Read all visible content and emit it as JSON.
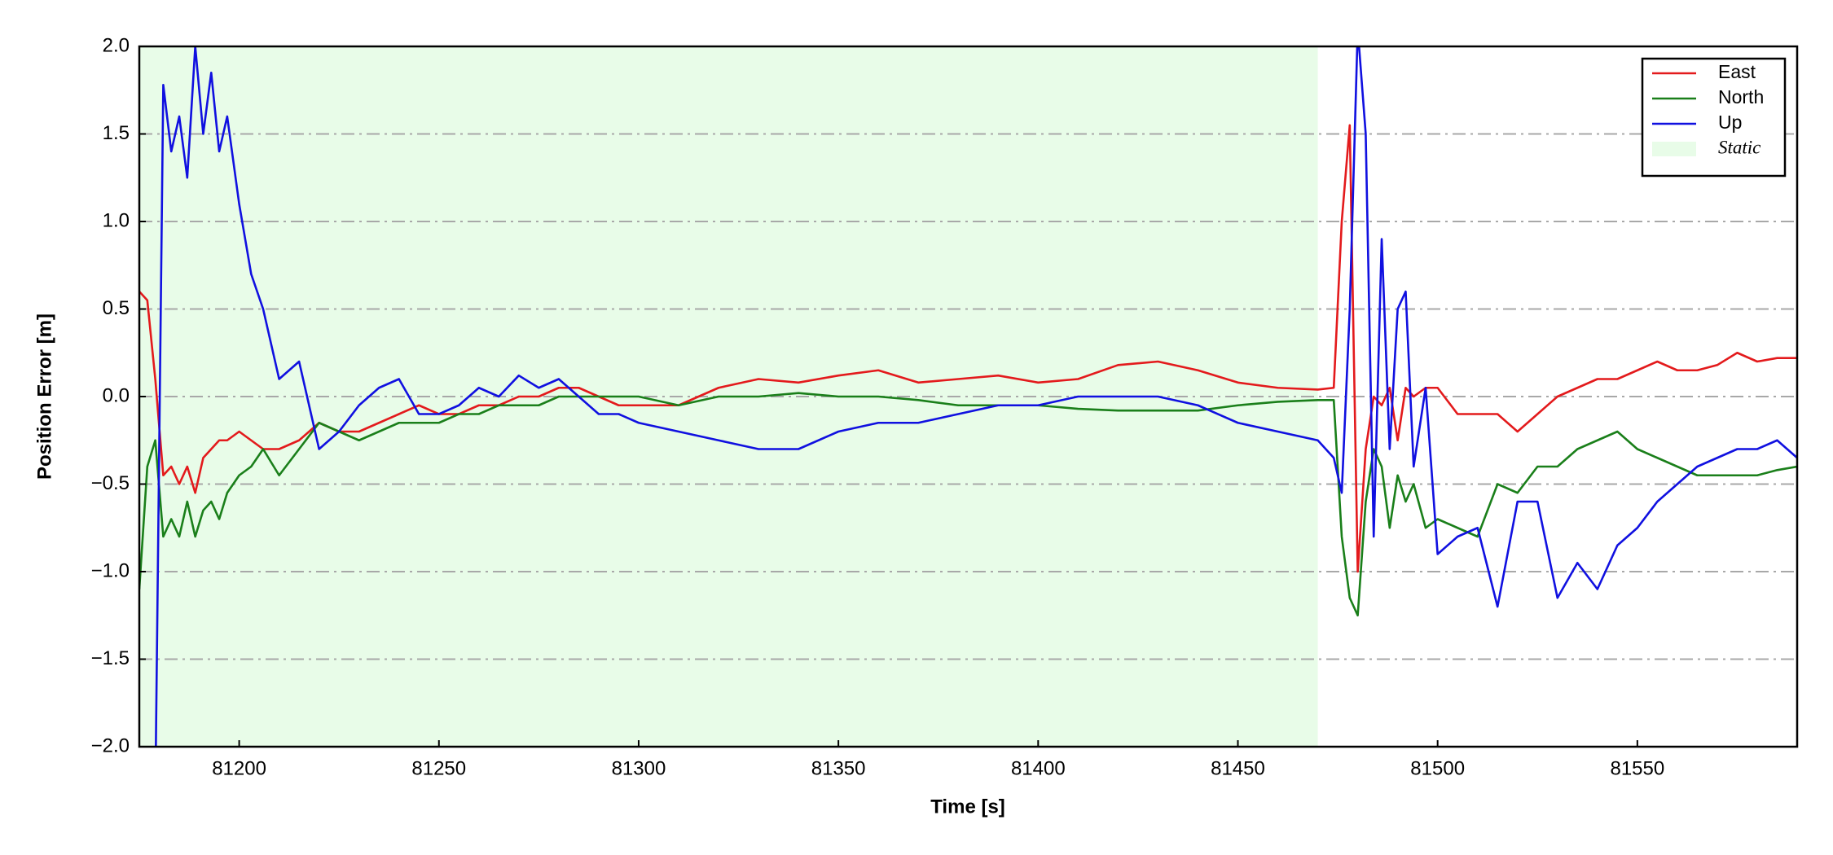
{
  "chart_data": {
    "type": "line",
    "xlabel": "Time [s]",
    "ylabel": "Position Error [m]",
    "xlim": [
      81175,
      81590
    ],
    "ylim": [
      -2.0,
      2.0
    ],
    "xticks": [
      81200,
      81250,
      81300,
      81350,
      81400,
      81450,
      81500,
      81550
    ],
    "yticks": [
      {
        "value": -2.0,
        "label": "−2.0"
      },
      {
        "value": -1.5,
        "label": "−1.5"
      },
      {
        "value": -1.0,
        "label": "−1.0"
      },
      {
        "value": -0.5,
        "label": "−0.5"
      },
      {
        "value": 0.0,
        "label": "0.0"
      },
      {
        "value": 0.5,
        "label": "0.5"
      },
      {
        "value": 1.0,
        "label": "1.0"
      },
      {
        "value": 1.5,
        "label": "1.5"
      },
      {
        "value": 2.0,
        "label": "2.0"
      }
    ],
    "grid": true,
    "legend": "upper right",
    "static_region": {
      "label": "Static",
      "x": [
        81175,
        81470
      ],
      "color": "#e8fce8"
    },
    "x": [
      81175,
      81177,
      81179,
      81181,
      81183,
      81185,
      81187,
      81189,
      81191,
      81193,
      81195,
      81197,
      81200,
      81203,
      81206,
      81210,
      81215,
      81220,
      81225,
      81230,
      81235,
      81240,
      81245,
      81250,
      81255,
      81260,
      81265,
      81270,
      81275,
      81280,
      81285,
      81290,
      81295,
      81300,
      81310,
      81320,
      81330,
      81340,
      81350,
      81360,
      81370,
      81380,
      81390,
      81400,
      81410,
      81420,
      81430,
      81440,
      81450,
      81460,
      81470,
      81474,
      81476,
      81478,
      81480,
      81482,
      81484,
      81486,
      81488,
      81490,
      81492,
      81494,
      81497,
      81500,
      81505,
      81510,
      81515,
      81520,
      81525,
      81530,
      81535,
      81540,
      81545,
      81550,
      81555,
      81560,
      81565,
      81570,
      81575,
      81580,
      81585,
      81590
    ],
    "series": [
      {
        "name": "East",
        "color": "#e31a1c",
        "values": [
          0.6,
          0.55,
          0.1,
          -0.45,
          -0.4,
          -0.5,
          -0.4,
          -0.55,
          -0.35,
          -0.3,
          -0.25,
          -0.25,
          -0.2,
          -0.25,
          -0.3,
          -0.3,
          -0.25,
          -0.15,
          -0.2,
          -0.2,
          -0.15,
          -0.1,
          -0.05,
          -0.1,
          -0.1,
          -0.05,
          -0.05,
          0.0,
          0.0,
          0.05,
          0.05,
          0.0,
          -0.05,
          -0.05,
          -0.05,
          0.05,
          0.1,
          0.08,
          0.12,
          0.15,
          0.08,
          0.1,
          0.12,
          0.08,
          0.1,
          0.18,
          0.2,
          0.15,
          0.08,
          0.05,
          0.04,
          0.05,
          1.0,
          1.55,
          -1.0,
          -0.3,
          0.0,
          -0.05,
          0.05,
          -0.25,
          0.05,
          0.0,
          0.05,
          0.05,
          -0.1,
          -0.1,
          -0.1,
          -0.2,
          -0.1,
          0.0,
          0.05,
          0.1,
          0.1,
          0.15,
          0.2,
          0.15,
          0.15,
          0.18,
          0.25,
          0.2,
          0.22,
          0.22
        ]
      },
      {
        "name": "North",
        "color": "#1a7f1a",
        "values": [
          -1.1,
          -0.4,
          -0.25,
          -0.8,
          -0.7,
          -0.8,
          -0.6,
          -0.8,
          -0.65,
          -0.6,
          -0.7,
          -0.55,
          -0.45,
          -0.4,
          -0.3,
          -0.45,
          -0.3,
          -0.15,
          -0.2,
          -0.25,
          -0.2,
          -0.15,
          -0.15,
          -0.15,
          -0.1,
          -0.1,
          -0.05,
          -0.05,
          -0.05,
          0.0,
          0.0,
          0.0,
          0.0,
          0.0,
          -0.05,
          0.0,
          0.0,
          0.02,
          0.0,
          0.0,
          -0.02,
          -0.05,
          -0.05,
          -0.05,
          -0.07,
          -0.08,
          -0.08,
          -0.08,
          -0.05,
          -0.03,
          -0.02,
          -0.02,
          -0.8,
          -1.15,
          -1.25,
          -0.6,
          -0.3,
          -0.4,
          -0.75,
          -0.45,
          -0.6,
          -0.5,
          -0.75,
          -0.7,
          -0.75,
          -0.8,
          -0.5,
          -0.55,
          -0.4,
          -0.4,
          -0.3,
          -0.25,
          -0.2,
          -0.3,
          -0.35,
          -0.4,
          -0.45,
          -0.45,
          -0.45,
          -0.45,
          -0.42,
          -0.4
        ]
      },
      {
        "name": "Up",
        "color": "#1010e0",
        "values": [
          null,
          null,
          -2.3,
          1.78,
          1.4,
          1.6,
          1.25,
          2.0,
          1.5,
          1.85,
          1.4,
          1.6,
          1.1,
          0.7,
          0.5,
          0.1,
          0.2,
          -0.3,
          -0.2,
          -0.05,
          0.05,
          0.1,
          -0.1,
          -0.1,
          -0.05,
          0.05,
          0.0,
          0.12,
          0.05,
          0.1,
          0.0,
          -0.1,
          -0.1,
          -0.15,
          -0.2,
          -0.25,
          -0.3,
          -0.3,
          -0.2,
          -0.15,
          -0.15,
          -0.1,
          -0.05,
          -0.05,
          0.0,
          0.0,
          0.0,
          -0.05,
          -0.15,
          -0.2,
          -0.25,
          -0.35,
          -0.55,
          0.5,
          2.1,
          1.5,
          -0.8,
          0.9,
          -0.3,
          0.5,
          0.6,
          -0.4,
          0.05,
          -0.9,
          -0.8,
          -0.75,
          -1.2,
          -0.6,
          -0.6,
          -1.15,
          -0.95,
          -1.1,
          -0.85,
          -0.75,
          -0.6,
          -0.5,
          -0.4,
          -0.35,
          -0.3,
          -0.3,
          -0.25,
          -0.35
        ]
      }
    ]
  }
}
